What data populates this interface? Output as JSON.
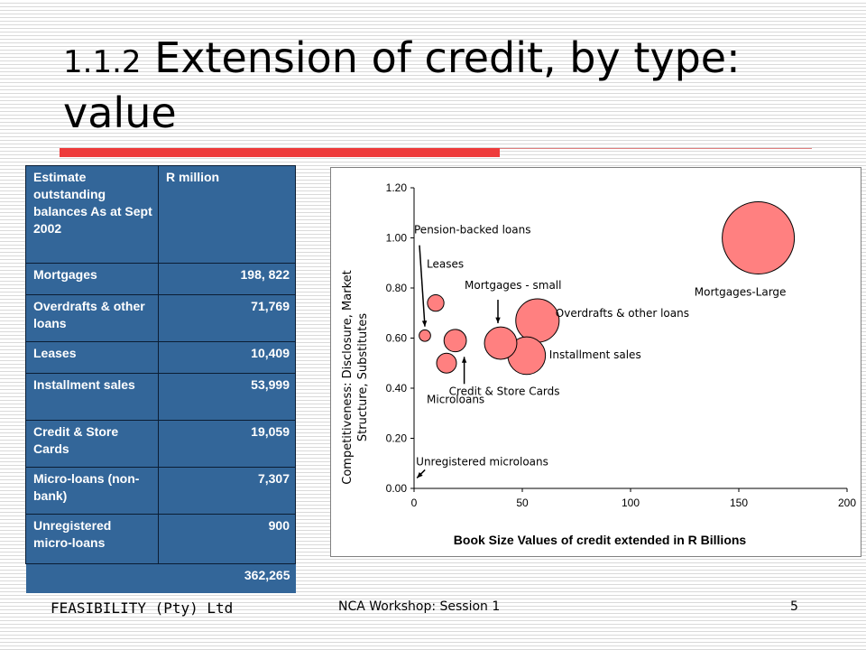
{
  "slide": {
    "title_number": "1.1.2",
    "title_text": "Extension of credit, by type: value",
    "footer_left": "FEASIBILITY (Pty) Ltd",
    "footer_center": "NCA Workshop: Session 1",
    "page_number": "5"
  },
  "table": {
    "header": [
      "Estimate outstanding balances As at Sept 2002",
      "R million"
    ],
    "rows": [
      [
        "Mortgages",
        "198, 822"
      ],
      [
        "Overdrafts & other loans",
        "71,769"
      ],
      [
        "Leases",
        "10,409"
      ],
      [
        "Installment sales",
        "53,999"
      ],
      [
        "Credit & Store Cards",
        "19,059"
      ],
      [
        "Micro-loans (non-bank)",
        "7,307"
      ],
      [
        "Unregistered micro-loans",
        "900"
      ]
    ],
    "total": "362,265"
  },
  "colors": {
    "table_bg": "#336699",
    "accent_rule": "#ee3b3b",
    "bubble_fill": "#ff8080"
  },
  "chart_data": {
    "type": "scatter",
    "xlabel": "Book Size Values of credit extended in R Billions",
    "ylabel": "Competitiveness: Disclosure, Market Structure, Substitutes",
    "xlim": [
      0,
      200
    ],
    "ylim": [
      0,
      1.2
    ],
    "x_ticks": [
      "0",
      "50",
      "100",
      "150",
      "200"
    ],
    "y_ticks": [
      "0.00",
      "0.20",
      "0.40",
      "0.60",
      "0.80",
      "1.00",
      "1.20"
    ],
    "grid": false,
    "points": [
      {
        "x": 159,
        "y": 1.0,
        "size": 198.8,
        "label": "Mortgages-Large"
      },
      {
        "x": 57,
        "y": 0.67,
        "size": 71.8,
        "label": "Overdrafts & other loans"
      },
      {
        "x": 52,
        "y": 0.53,
        "size": 54.0,
        "label": "Installment sales"
      },
      {
        "x": 40,
        "y": 0.58,
        "size": 40.0,
        "label": "Mortgages - small"
      },
      {
        "x": 19,
        "y": 0.59,
        "size": 19.1,
        "label": "Credit & Store Cards"
      },
      {
        "x": 15,
        "y": 0.5,
        "size": 15.0,
        "label": "Microloans"
      },
      {
        "x": 10,
        "y": 0.74,
        "size": 10.4,
        "label": "Leases"
      },
      {
        "x": 5,
        "y": 0.61,
        "size": 5.0,
        "label": "Pension-backed loans"
      },
      {
        "x": 0.9,
        "y": 0.02,
        "size": 0.9,
        "label": "Unregistered microloans"
      }
    ]
  }
}
